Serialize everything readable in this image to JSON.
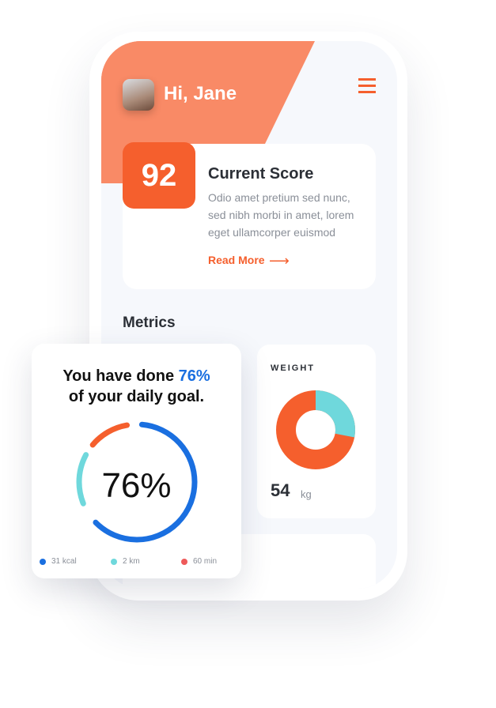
{
  "header": {
    "greeting": "Hi, Jane",
    "menu_icon": "hamburger-icon"
  },
  "score_card": {
    "score": "92",
    "title": "Current Score",
    "body": "Odio amet pretium sed nunc, sed nibh morbi in amet, lorem eget ullamcorper euismod",
    "link": "Read More",
    "arrow": "⟶"
  },
  "metrics": {
    "title": "Metrics"
  },
  "weight": {
    "label": "WEIGHT",
    "value": "54",
    "unit": "kg",
    "share_teal": 0.28
  },
  "goal": {
    "title_pre": "You have done ",
    "title_pct": "76%",
    "title_post": "of your daily goal.",
    "center": "76%",
    "progress": 0.76,
    "legend": [
      {
        "label": "31 kcal",
        "color": "#1a6fe0"
      },
      {
        "label": "2 km",
        "color": "#6fd8dc"
      },
      {
        "label": "60 min",
        "color": "#ee5a5a"
      }
    ]
  },
  "colors": {
    "accent": "#f55f2d",
    "header": "#f98a66",
    "blue": "#1a6fe0",
    "teal": "#6fd8dc"
  }
}
